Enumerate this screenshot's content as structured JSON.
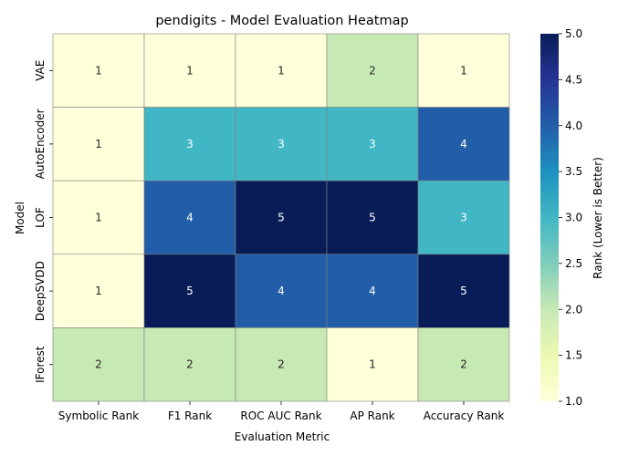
{
  "chart_data": {
    "type": "heatmap",
    "title": "pendigits - Model Evaluation Heatmap",
    "xlabel": "Evaluation Metric",
    "ylabel": "Model",
    "columns": [
      "Symbolic Rank",
      "F1 Rank",
      "ROC AUC Rank",
      "AP Rank",
      "Accuracy Rank"
    ],
    "rows": [
      "VAE",
      "AutoEncoder",
      "LOF",
      "DeepSVDD",
      "IForest"
    ],
    "values": [
      [
        1,
        1,
        1,
        2,
        1
      ],
      [
        1,
        3,
        3,
        3,
        4
      ],
      [
        1,
        4,
        5,
        5,
        3
      ],
      [
        1,
        5,
        4,
        4,
        5
      ],
      [
        2,
        2,
        2,
        1,
        2
      ]
    ],
    "colorbar": {
      "label": "Rank (Lower is Better)",
      "min": 1,
      "max": 5,
      "ticks": [
        "1.0",
        "1.5",
        "2.0",
        "2.5",
        "3.0",
        "3.5",
        "4.0",
        "4.5",
        "5.0"
      ]
    },
    "colormap": "YlGnBu",
    "cell_border_color": "#808080"
  }
}
